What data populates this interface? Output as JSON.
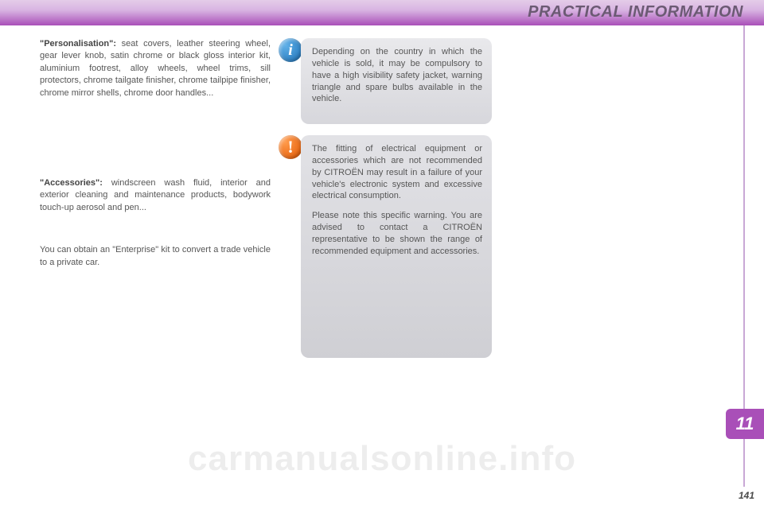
{
  "header": {
    "title": "PRACTICAL INFORMATION",
    "band_gradient_top": "#e4cce8",
    "band_gradient_bottom": "#a94fb8",
    "title_color": "#6b5a73"
  },
  "left_column": {
    "personalisation_label": "\"Personalisation\":",
    "personalisation_text": " seat covers, leather steering wheel, gear lever knob, satin chrome or black gloss interior kit, aluminium footrest, alloy wheels, wheel trims, sill protectors, chrome tailgate finisher, chrome tailpipe finisher, chrome mirror shells, chrome door handles...",
    "accessories_label": "\"Accessories\":",
    "accessories_text": " windscreen wash fluid, interior and exterior cleaning and maintenance products, bodywork touch-up aerosol and pen...",
    "enterprise_text": "You can obtain an \"Enterprise\" kit to convert a trade vehicle to a private car."
  },
  "info_box": {
    "icon": "i",
    "icon_bg_light": "#5fb0e8",
    "icon_bg_dark": "#1b6fb5",
    "text": "Depending on the country in which the vehicle is sold, it may be compulsory to have a high visibility safety jacket, warning triangle and spare bulbs available in the vehicle.",
    "bg_top": "#e9e9ec",
    "bg_bottom": "#d7d7dc"
  },
  "warn_box": {
    "icon": "!",
    "icon_bg_light": "#ff9a4a",
    "icon_bg_dark": "#e05500",
    "para1": "The fitting of electrical equipment or accessories which are not recommended by CITROËN may result in a failure of your vehicle's electronic system and excessive electrical consumption.",
    "para2": "Please note this specific warning. You are advised to contact a CITROËN representative to be shown the range of recommended equipment and accessories.",
    "bg_top": "#e2e2e6",
    "bg_bottom": "#cfcfd4"
  },
  "chapter": {
    "number": "11",
    "badge_color": "#a94fb8"
  },
  "page_number": "141",
  "watermark": "carmanualsonline.info",
  "colors": {
    "text": "#565656",
    "strip": "#c9a8d6"
  }
}
